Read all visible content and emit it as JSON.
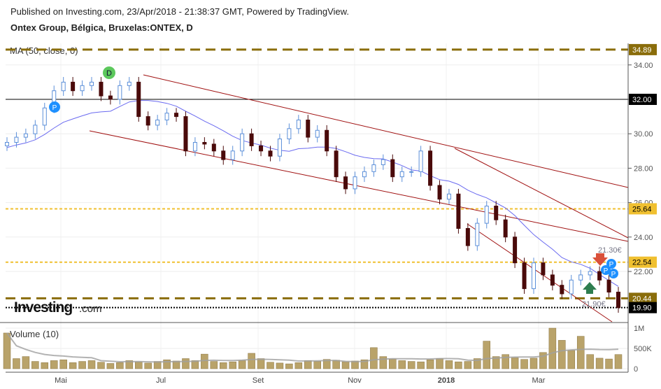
{
  "header": {
    "published": "Published on Investing.com, 23/Apr/2018 - 21:38:37 GMT, Powered by TradingView.",
    "symbol": "Ontex Group, Bélgica, Bruxelas:ONTEX, D"
  },
  "logo": {
    "text": "Investing",
    "suffix": ".com"
  },
  "chart_data": [
    {
      "type": "candlestick",
      "title": "Ontex Group, Bélgica, Bruxelas:ONTEX, D",
      "indicator": "MA (50, close, 0)",
      "x_tick_labels": [
        "Mai",
        "Jul",
        "Set",
        "Nov",
        "2018",
        "Mar"
      ],
      "y_tick_labels": [
        "34.00",
        "32.00",
        "30.00",
        "28.00",
        "26.00",
        "24.00",
        "22.00"
      ],
      "ylim": [
        19.2,
        35.9
      ],
      "closes": [
        29.5,
        29.8,
        30,
        30.5,
        31.5,
        32.5,
        33,
        32.5,
        32.8,
        33,
        32.2,
        32,
        32.8,
        33,
        31,
        30.5,
        30.8,
        31.2,
        31,
        29,
        29.5,
        29.4,
        29,
        28.5,
        29,
        30,
        29.3,
        29,
        28.7,
        29.7,
        30.3,
        30.8,
        29.8,
        30.2,
        29,
        27.5,
        26.8,
        27.5,
        27.8,
        28.2,
        28.5,
        27.5,
        27.8,
        27.8,
        29,
        27,
        26.2,
        26.5,
        24.5,
        23.5,
        24.8,
        25.8,
        25,
        24,
        22.5,
        21,
        22.5,
        21.8,
        21.2,
        20.7,
        21.5,
        21.8,
        22,
        21.5,
        20.8,
        19.9
      ],
      "price_levels": [
        {
          "value": "34.89",
          "color": "#8a6d0b",
          "style": "dashed"
        },
        {
          "value": "32.00",
          "color": "#000000",
          "style": "solid"
        },
        {
          "value": "25.64",
          "color": "#f0c030",
          "style": "dotted"
        },
        {
          "value": "22.54",
          "color": "#f0c030",
          "style": "dotted"
        },
        {
          "value": "20.44",
          "color": "#8a6d0b",
          "style": "dashed"
        },
        {
          "value": "19.90",
          "color": "#000000",
          "style": "dotted"
        }
      ],
      "annotations": [
        "21.30€",
        "21.90€"
      ],
      "markers": [
        "P",
        "D",
        "P",
        "P",
        "P"
      ],
      "colors": {
        "up": "#ffffff",
        "up_border": "#5b8fd9",
        "down": "#4a0a0a",
        "ma": "#6a6af0",
        "channel": "#a01010"
      }
    },
    {
      "type": "bar",
      "title": "Volume (10)",
      "y_tick_labels": [
        "1M",
        "500K",
        "0"
      ],
      "values": [
        880,
        250,
        300,
        180,
        150,
        200,
        220,
        150,
        180,
        200,
        160,
        130,
        150,
        200,
        170,
        140,
        180,
        220,
        190,
        250,
        200,
        360,
        180,
        150,
        170,
        200,
        380,
        250,
        160,
        140,
        120,
        150,
        200,
        180,
        230,
        210,
        170,
        190,
        220,
        520,
        300,
        240,
        200,
        180,
        170,
        220,
        250,
        200,
        170,
        180,
        250,
        680,
        300,
        350,
        270,
        230,
        260,
        400,
        1000,
        700,
        450,
        800,
        350,
        260,
        240,
        350
      ],
      "colors": {
        "bar": "#b9a36a",
        "avg": "#a0a0a0"
      }
    }
  ]
}
